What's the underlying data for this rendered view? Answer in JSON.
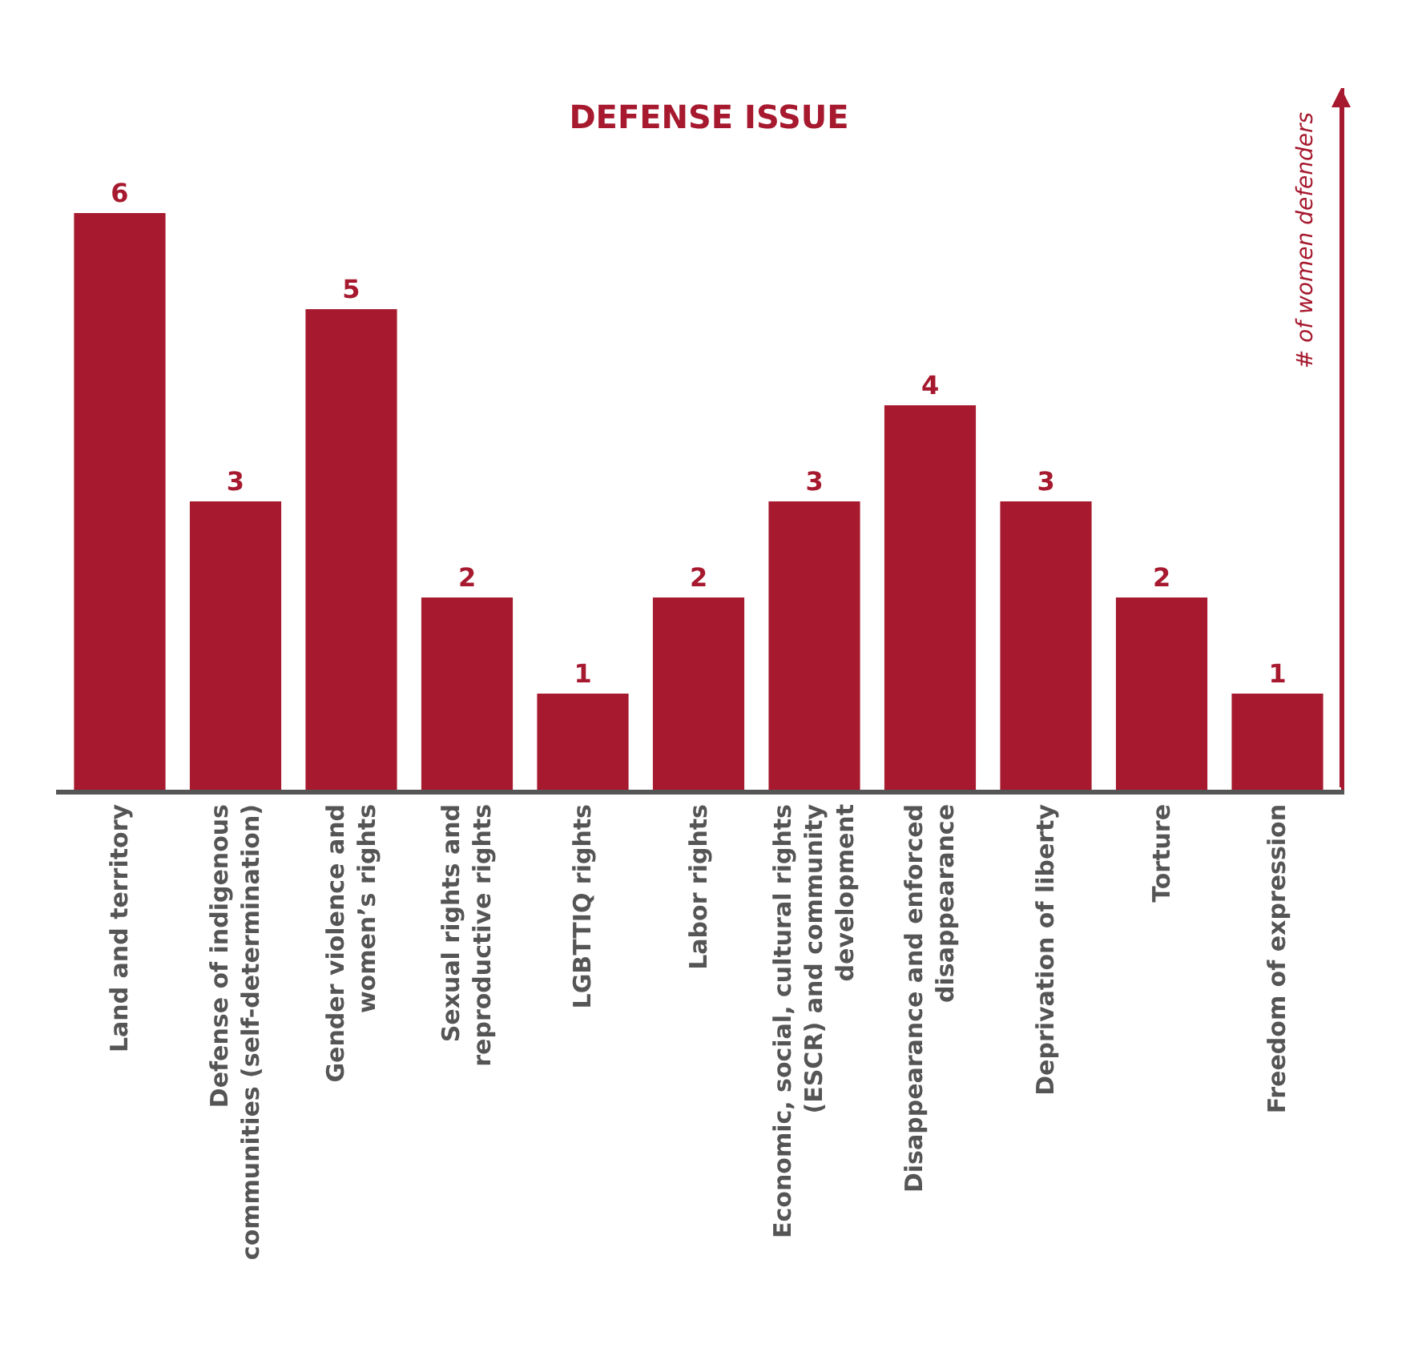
{
  "chart_data": {
    "type": "bar",
    "title": "DEFENSE ISSUE",
    "ylabel": "# of women defenders",
    "categories": [
      "Land and territory",
      "Defense of indigenous\ncommunities (self-determination)",
      "Gender violence and\nwomen’s rights",
      "Sexual rights and\nreproductive rights",
      "LGBTTIQ rights",
      "Labor rights",
      "Economic, social, cultural rights\n(ESCR) and community\ndevelopment",
      "Disappearance and enforced\ndisappearance",
      "Deprivation of liberty",
      "Torture",
      "Freedom of expression"
    ],
    "values": [
      6,
      3,
      5,
      2,
      1,
      2,
      3,
      4,
      3,
      2,
      1
    ],
    "color": "#a6192e",
    "ylim": [
      0,
      7.3
    ],
    "data_labels": true,
    "tick_labels": "x",
    "grid": false
  }
}
